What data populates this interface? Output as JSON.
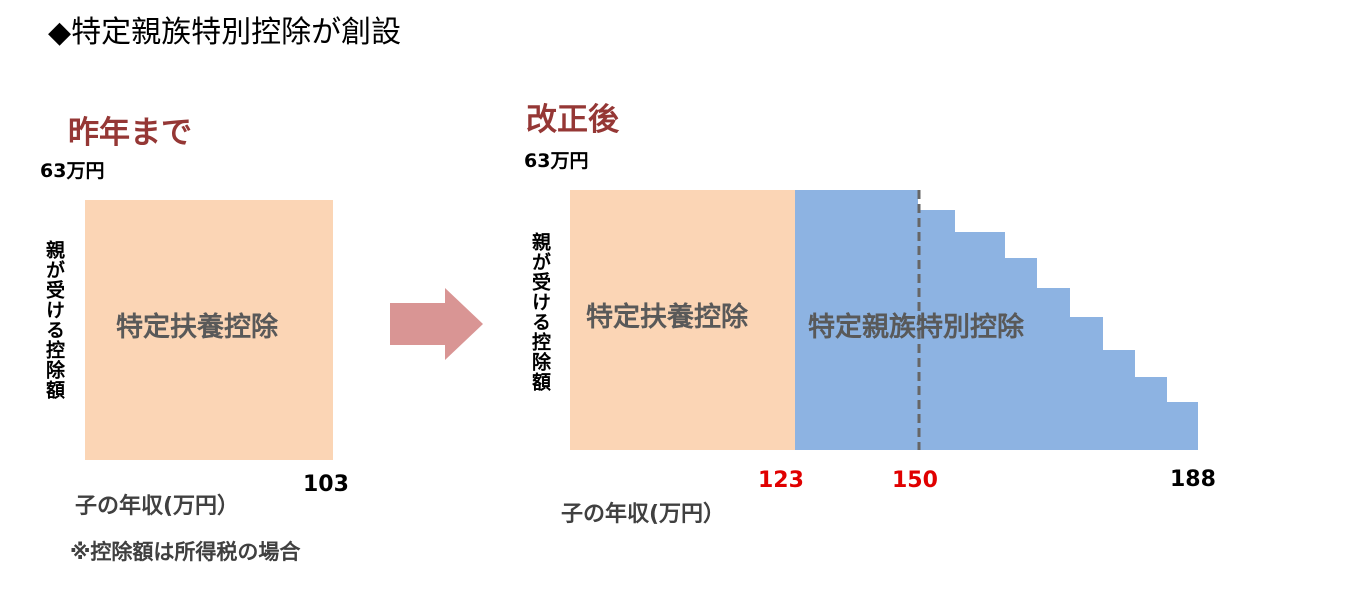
{
  "title": "◆特定親族特別控除が創設",
  "before": {
    "heading": "昨年まで",
    "y_max": "63万円",
    "y_label": "親が受ける控除額",
    "box_label": "特定扶養控除",
    "x_end": "103",
    "x_label": "子の年収(万円）"
  },
  "after": {
    "heading": "改正後",
    "y_max": "63万円",
    "y_label": "親が受ける控除額",
    "box_label": "特定扶養控除",
    "new_label": "特定親族特別控除",
    "x_marks": [
      "123",
      "150",
      "188"
    ],
    "x_label": "子の年収(万円）"
  },
  "note": "※控除額は所得税の場合"
}
